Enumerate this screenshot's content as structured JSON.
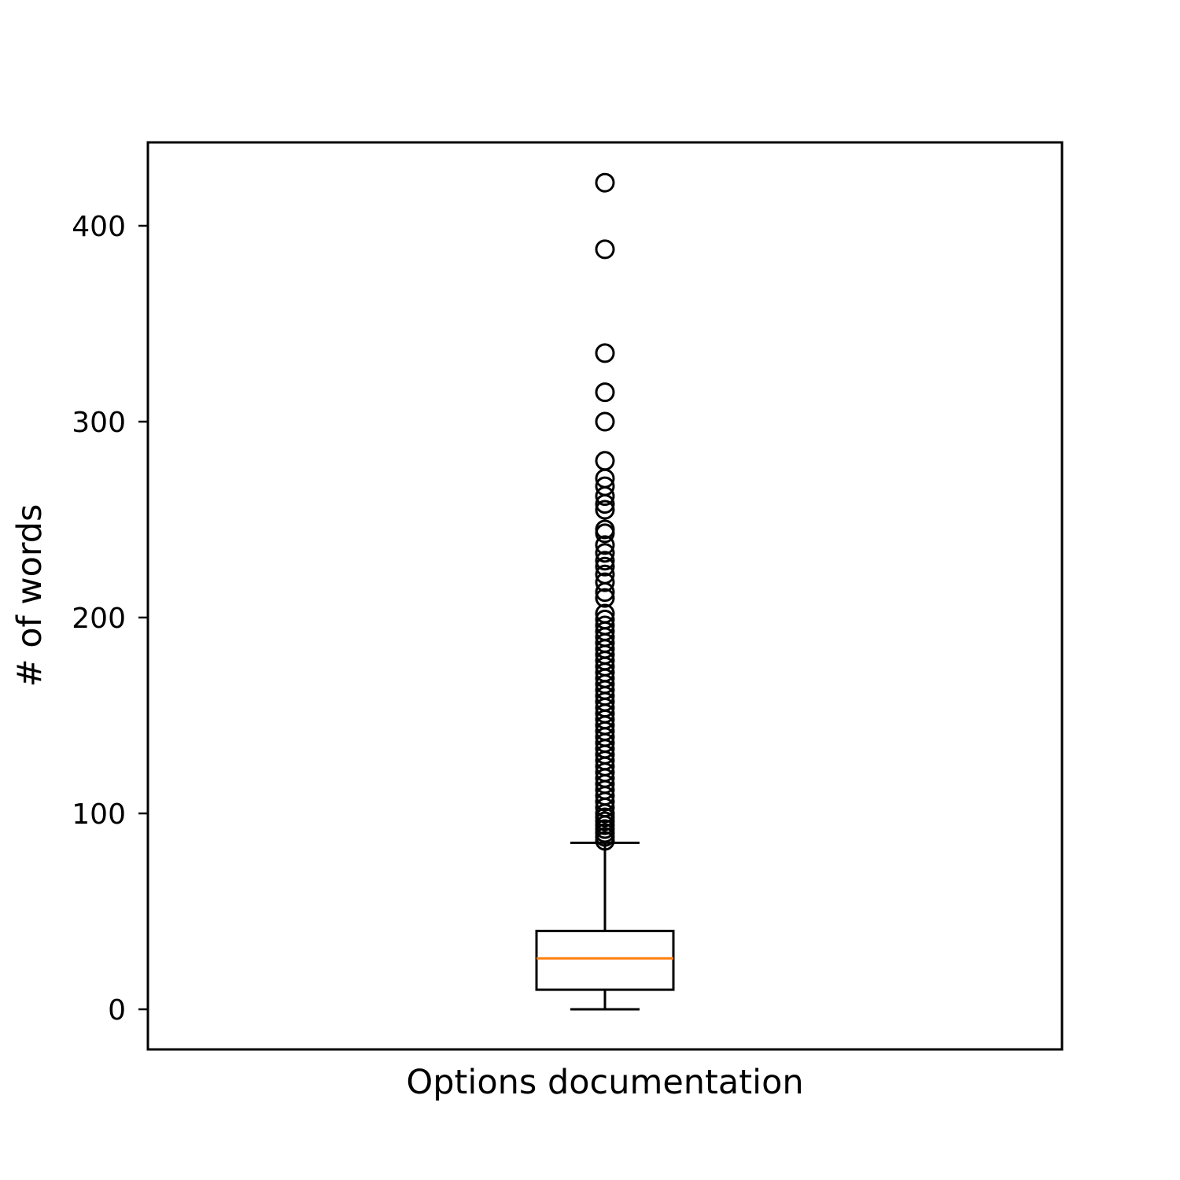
{
  "chart_data": {
    "type": "box",
    "xlabel": "Options documentation",
    "ylabel": "# of words",
    "ylim": [
      -20,
      442
    ],
    "yticks": [
      0,
      100,
      200,
      300,
      400
    ],
    "categories": [
      "Options documentation"
    ],
    "box": {
      "whisker_low": 0,
      "q1": 10,
      "median": 26,
      "q3": 40,
      "whisker_high": 85
    },
    "outliers": [
      422,
      388,
      335,
      315,
      300,
      280,
      271,
      267,
      262,
      258,
      255,
      245,
      243,
      237,
      233,
      229,
      226,
      222,
      218,
      213,
      210,
      202,
      199,
      196,
      193,
      190,
      187,
      184,
      181,
      178,
      175,
      172,
      169,
      166,
      163,
      160,
      157,
      154,
      151,
      148,
      145,
      142,
      139,
      136,
      133,
      130,
      127,
      124,
      121,
      118,
      115,
      112,
      109,
      106,
      103,
      100,
      98,
      96,
      94,
      92,
      90,
      88,
      86
    ],
    "grid": false,
    "colors": {
      "box": "#000000",
      "median": "#ff7f0e",
      "outlier": "#000000"
    }
  }
}
